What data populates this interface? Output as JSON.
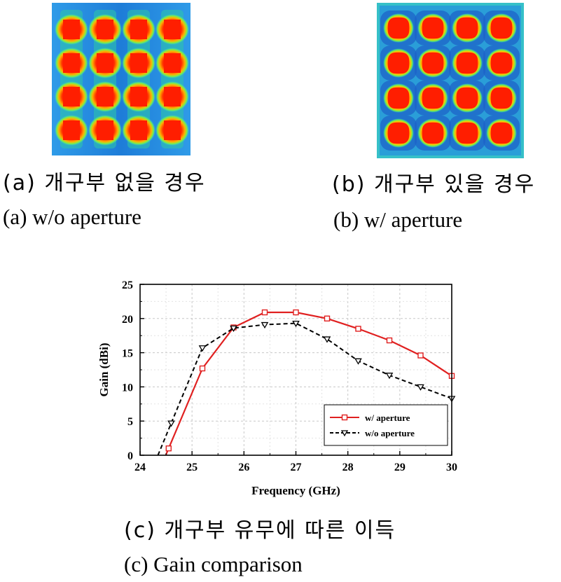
{
  "panel_a": {
    "caption_kr": "(a) 개구부 없을 경우",
    "caption_en": "(a) w/o aperture"
  },
  "panel_b": {
    "caption_kr": "(b) 개구부 있을 경우",
    "caption_en": "(b) w/ aperture"
  },
  "panel_c": {
    "caption_kr": "(c) 개구부 유무에 따른 이득",
    "caption_en": "(c) Gain comparison"
  },
  "colors": {
    "field_bg": "#1e7dd8",
    "field_hot": "#ff1e00",
    "field_warm": "#ffd000",
    "field_mid": "#3ef07a",
    "w_aperture": "#e02020",
    "wo_aperture": "#000000"
  },
  "chart_data": {
    "type": "line",
    "xlabel": "Frequency (GHz)",
    "ylabel": "Gain (dBi)",
    "xlim": [
      24,
      30
    ],
    "ylim": [
      0,
      25
    ],
    "xticks": [
      24,
      25,
      26,
      27,
      28,
      29,
      30
    ],
    "yticks": [
      0,
      5,
      10,
      15,
      20,
      25
    ],
    "grid": true,
    "legend_position": "bottom-right",
    "series": [
      {
        "name": "w/  aperture",
        "marker": "square",
        "line": "solid",
        "x": [
          24.55,
          25.2,
          25.8,
          26.4,
          27.0,
          27.6,
          28.2,
          28.8,
          29.4,
          30.0
        ],
        "y": [
          1.0,
          12.7,
          18.7,
          20.9,
          20.9,
          20.0,
          18.5,
          16.8,
          14.6,
          11.6
        ]
      },
      {
        "name": "w/o aperture",
        "marker": "triangle-down",
        "line": "dashed",
        "x": [
          24.6,
          25.2,
          25.8,
          26.4,
          27.0,
          27.6,
          28.2,
          28.8,
          29.4,
          30.0
        ],
        "y": [
          4.7,
          15.7,
          18.6,
          19.1,
          19.3,
          17.0,
          13.8,
          11.7,
          10.0,
          8.3
        ]
      }
    ]
  }
}
